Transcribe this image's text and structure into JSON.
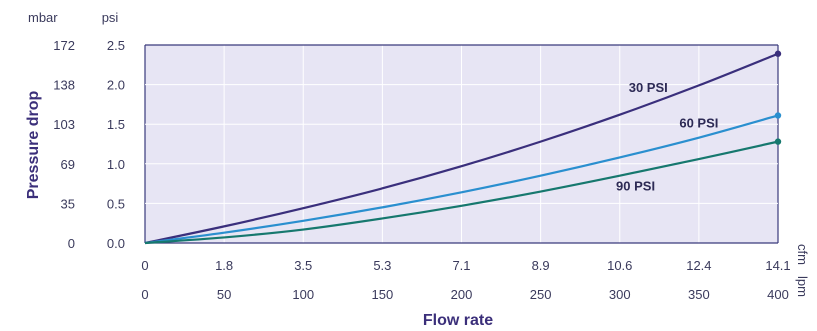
{
  "chart_data": {
    "type": "line",
    "xlabel": "Flow rate",
    "ylabel": "Pressure drop",
    "xlim": [
      0,
      400
    ],
    "ylim": [
      0,
      2.5
    ],
    "y_units": {
      "left": "mbar",
      "right": "psi"
    },
    "x_units": {
      "top": "cfm",
      "bottom": "lpm"
    },
    "y_ticks_psi": [
      "0.0",
      "0.5",
      "1.0",
      "1.5",
      "2.0",
      "2.5"
    ],
    "y_ticks_mbar": [
      "0",
      "35",
      "69",
      "103",
      "138",
      "172"
    ],
    "x_ticks_lpm": [
      "0",
      "50",
      "100",
      "150",
      "200",
      "250",
      "300",
      "350",
      "400"
    ],
    "x_ticks_cfm": [
      "0",
      "1.8",
      "3.5",
      "5.3",
      "7.1",
      "8.9",
      "10.6",
      "12.4",
      "14.1"
    ],
    "grid": true,
    "series": [
      {
        "name": "30 PSI",
        "color": "#3a2f7c",
        "x": [
          0,
          50,
          100,
          150,
          200,
          250,
          300,
          350,
          400
        ],
        "y": [
          0,
          0.21,
          0.44,
          0.69,
          0.97,
          1.28,
          1.62,
          1.99,
          2.39
        ]
      },
      {
        "name": "60 PSI",
        "color": "#2a8fcf",
        "x": [
          0,
          50,
          100,
          150,
          200,
          250,
          300,
          350,
          400
        ],
        "y": [
          0,
          0.13,
          0.28,
          0.45,
          0.64,
          0.85,
          1.08,
          1.33,
          1.61
        ]
      },
      {
        "name": "90 PSI",
        "color": "#16786e",
        "x": [
          0,
          50,
          100,
          150,
          200,
          250,
          300,
          350,
          400
        ],
        "y": [
          0,
          0.07,
          0.17,
          0.31,
          0.47,
          0.65,
          0.85,
          1.06,
          1.28
        ]
      }
    ]
  }
}
